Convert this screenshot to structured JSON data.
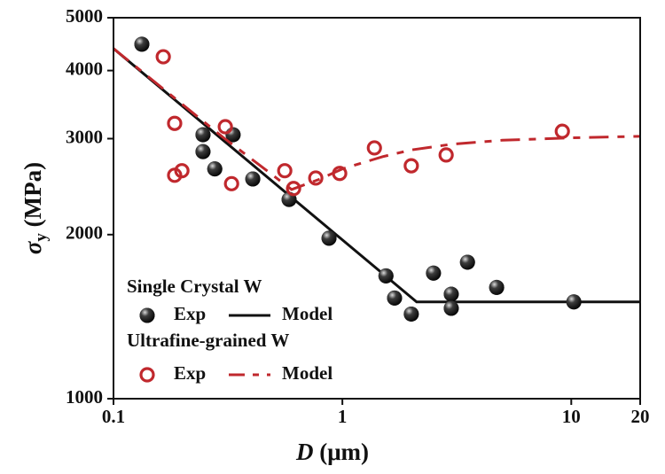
{
  "chart_data": {
    "type": "scatter",
    "xscale": "log",
    "yscale": "log",
    "xlim": [
      0.1,
      20
    ],
    "ylim": [
      1000,
      5000
    ],
    "xticks": [
      0.1,
      1,
      10,
      20
    ],
    "yticks": [
      1000,
      2000,
      3000,
      4000,
      5000
    ],
    "x_label": {
      "symbol": "D",
      "unit": "(μm)"
    },
    "y_label": {
      "symbol": "σ",
      "subscript": "y",
      "unit": "(MPa)"
    },
    "groups": [
      {
        "title": "Single Crystal W",
        "series": [
          {
            "name": "Exp",
            "kind": "scatter",
            "marker": "filled",
            "color": "#111111",
            "x": [
              0.133,
              0.246,
              0.246,
              0.333,
              0.277,
              0.406,
              0.585,
              0.874,
              1.55,
              1.69,
              2.0,
              2.5,
              2.99,
              2.99,
              3.52,
              4.72,
              10.26
            ],
            "values": [
              4470,
              3050,
              2840,
              3050,
              2640,
              2530,
              2320,
              1970,
              1680,
              1530,
              1430,
              1700,
              1555,
              1465,
              1780,
              1600,
              1505
            ]
          },
          {
            "name": "Model",
            "kind": "line",
            "dash": "solid",
            "color": "#111111",
            "x": [
              0.1,
              2.11,
              20
            ],
            "values": [
              4390,
              1505,
              1505
            ]
          }
        ]
      },
      {
        "title": "Ultrafine-grained W",
        "series": [
          {
            "name": "Exp",
            "kind": "scatter",
            "marker": "open",
            "color": "#c0282d",
            "x": [
              0.165,
              0.185,
              0.185,
              0.199,
              0.308,
              0.328,
              0.56,
              0.612,
              0.765,
              0.973,
              1.38,
              2.0,
              2.84,
              9.14
            ],
            "values": [
              4240,
              3200,
              2570,
              2620,
              3155,
              2480,
              2620,
              2430,
              2540,
              2590,
              2885,
              2675,
              2800,
              3095
            ]
          },
          {
            "name": "Model",
            "kind": "line",
            "dash": "dashed",
            "color": "#c0282d",
            "x": [
              0.1,
              0.3,
              0.6,
              0.8,
              1,
              1.5,
              2,
              3,
              5,
              10,
              20
            ],
            "values": [
              4390,
              3020,
              2420,
              2530,
              2640,
              2780,
              2860,
              2930,
              2980,
              3010,
              3030
            ]
          }
        ]
      }
    ]
  }
}
